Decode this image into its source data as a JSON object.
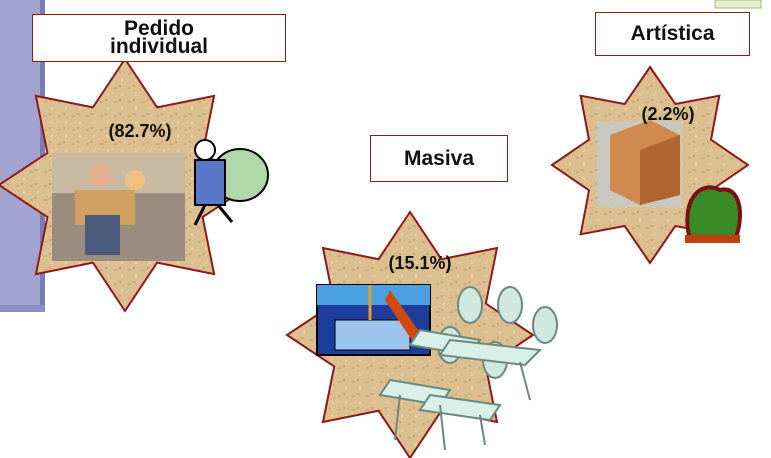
{
  "items": [
    {
      "label": "Pedido individual",
      "share": "(82.7%)"
    },
    {
      "label": "Masiva",
      "share": "(15.1%)"
    },
    {
      "label": "Artística",
      "share": "(2.2%)"
    }
  ]
}
